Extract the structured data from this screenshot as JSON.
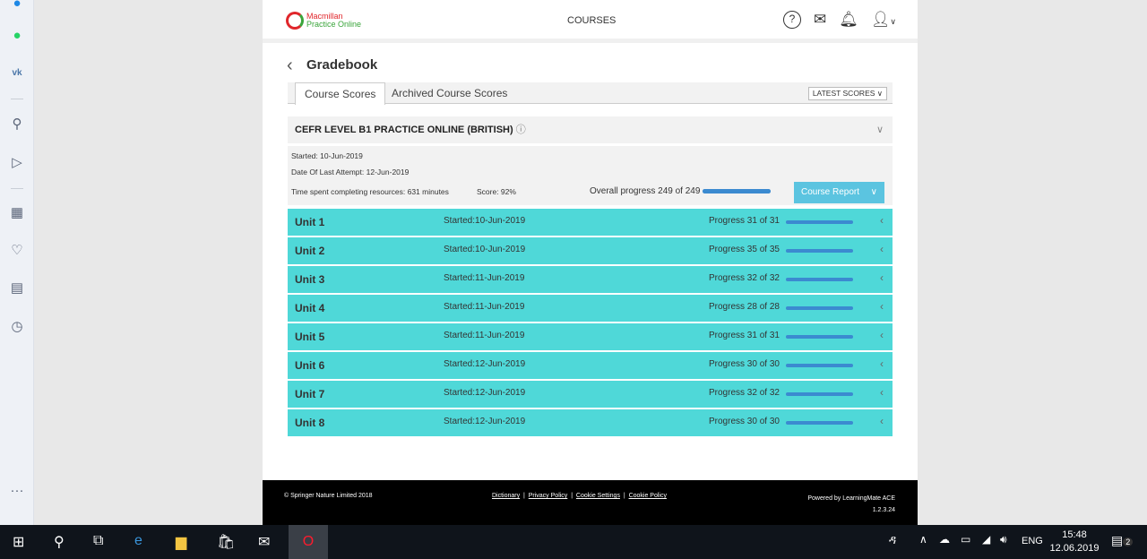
{
  "header": {
    "courses": "COURSES",
    "logo_line1": "Macmillan",
    "logo_line2": "Practice Online"
  },
  "page": {
    "title": "Gradebook"
  },
  "tabs": [
    {
      "label": "Course Scores"
    },
    {
      "label": "Archived Course Scores"
    }
  ],
  "sort": {
    "selected": "LATEST SCORES"
  },
  "course": {
    "name": "CEFR LEVEL B1 PRACTICE ONLINE (BRITISH)",
    "started": "Started: 10-Jun-2019",
    "last_attempt": "Date Of Last Attempt: 12-Jun-2019",
    "time_spent": "Time spent completing resources: 631 minutes",
    "score": "Score: 92%",
    "overall": "Overall progress 249 of 249",
    "overall_fraction": 1,
    "report_button": "Course Report"
  },
  "units": [
    {
      "name": "Unit 1",
      "started": "Started:10-Jun-2019",
      "progress": "Progress 31 of 31"
    },
    {
      "name": "Unit 2",
      "started": "Started:10-Jun-2019",
      "progress": "Progress 35 of 35"
    },
    {
      "name": "Unit 3",
      "started": "Started:11-Jun-2019",
      "progress": "Progress 32 of 32"
    },
    {
      "name": "Unit 4",
      "started": "Started:11-Jun-2019",
      "progress": "Progress 28 of 28"
    },
    {
      "name": "Unit 5",
      "started": "Started:11-Jun-2019",
      "progress": "Progress 31 of 31"
    },
    {
      "name": "Unit 6",
      "started": "Started:12-Jun-2019",
      "progress": "Progress 30 of 30"
    },
    {
      "name": "Unit 7",
      "started": "Started:12-Jun-2019",
      "progress": "Progress 32 of 32"
    },
    {
      "name": "Unit 8",
      "started": "Started:12-Jun-2019",
      "progress": "Progress 30 of 30"
    }
  ],
  "footer": {
    "copyright": "© Springer Nature Limited 2018",
    "links": [
      "Dictionary",
      "Privacy Policy",
      "Cookie Settings",
      "Cookie Policy"
    ],
    "powered": "Powered by LearningMate ACE",
    "version": "1.2.3.24"
  },
  "taskbar": {
    "lang": "ENG",
    "time": "15:48",
    "date": "12.06.2019",
    "notifications": "2"
  },
  "colors": {
    "unit_row": "#4fd8d8",
    "progress": "#3b8ad0",
    "button": "#5bc4e0"
  }
}
